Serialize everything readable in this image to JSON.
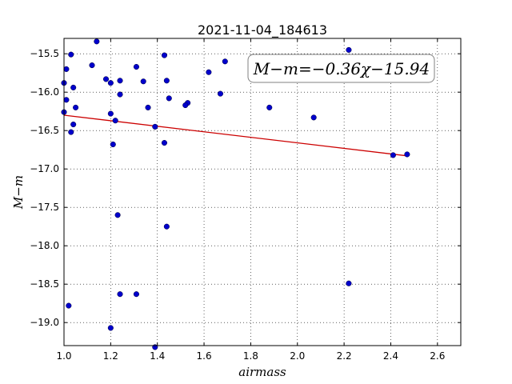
{
  "chart_data": {
    "type": "scatter",
    "title": "2021-11-04_184613",
    "xlabel": "airmass",
    "ylabel": "M−m",
    "xlim": [
      1.0,
      2.7
    ],
    "ylim": [
      -19.3,
      -15.3
    ],
    "y_inverted": true,
    "grid": true,
    "xticks": [
      "1.0",
      "1.2",
      "1.4",
      "1.6",
      "1.8",
      "2.0",
      "2.2",
      "2.4",
      "2.6"
    ],
    "yticks": [
      "−15.5",
      "−16.0",
      "−16.5",
      "−17.0",
      "−17.5",
      "−18.0",
      "−18.5",
      "−19.0"
    ],
    "annotation": "M−m=−0.36χ−15.94",
    "point_color": "#0000cc",
    "fit_color": "#cc0000",
    "fit": {
      "slope": -0.36,
      "intercept": -15.94,
      "x_range": [
        1.0,
        2.47
      ]
    },
    "series": [
      {
        "points": [
          [
            1.0,
            -15.88
          ],
          [
            1.01,
            -15.7
          ],
          [
            1.01,
            -16.1
          ],
          [
            1.0,
            -16.26
          ],
          [
            1.03,
            -15.51
          ],
          [
            1.04,
            -15.94
          ],
          [
            1.05,
            -16.2
          ],
          [
            1.04,
            -16.42
          ],
          [
            1.03,
            -16.52
          ],
          [
            1.02,
            -18.78
          ],
          [
            1.14,
            -15.34
          ],
          [
            1.12,
            -15.65
          ],
          [
            1.18,
            -15.83
          ],
          [
            1.2,
            -15.88
          ],
          [
            1.24,
            -15.85
          ],
          [
            1.24,
            -16.03
          ],
          [
            1.2,
            -16.28
          ],
          [
            1.22,
            -16.37
          ],
          [
            1.21,
            -16.68
          ],
          [
            1.23,
            -17.6
          ],
          [
            1.24,
            -18.63
          ],
          [
            1.2,
            -19.07
          ],
          [
            1.31,
            -15.67
          ],
          [
            1.34,
            -15.86
          ],
          [
            1.36,
            -16.2
          ],
          [
            1.39,
            -16.45
          ],
          [
            1.31,
            -18.63
          ],
          [
            1.39,
            -19.32
          ],
          [
            1.43,
            -15.52
          ],
          [
            1.44,
            -15.85
          ],
          [
            1.45,
            -16.08
          ],
          [
            1.43,
            -16.66
          ],
          [
            1.44,
            -17.75
          ],
          [
            1.53,
            -16.14
          ],
          [
            1.52,
            -16.17
          ],
          [
            1.62,
            -15.74
          ],
          [
            1.69,
            -15.6
          ],
          [
            1.67,
            -16.02
          ],
          [
            1.88,
            -16.2
          ],
          [
            2.07,
            -16.33
          ],
          [
            2.22,
            -15.45
          ],
          [
            2.22,
            -18.49
          ],
          [
            2.41,
            -16.82
          ],
          [
            2.47,
            -16.81
          ]
        ]
      }
    ]
  }
}
